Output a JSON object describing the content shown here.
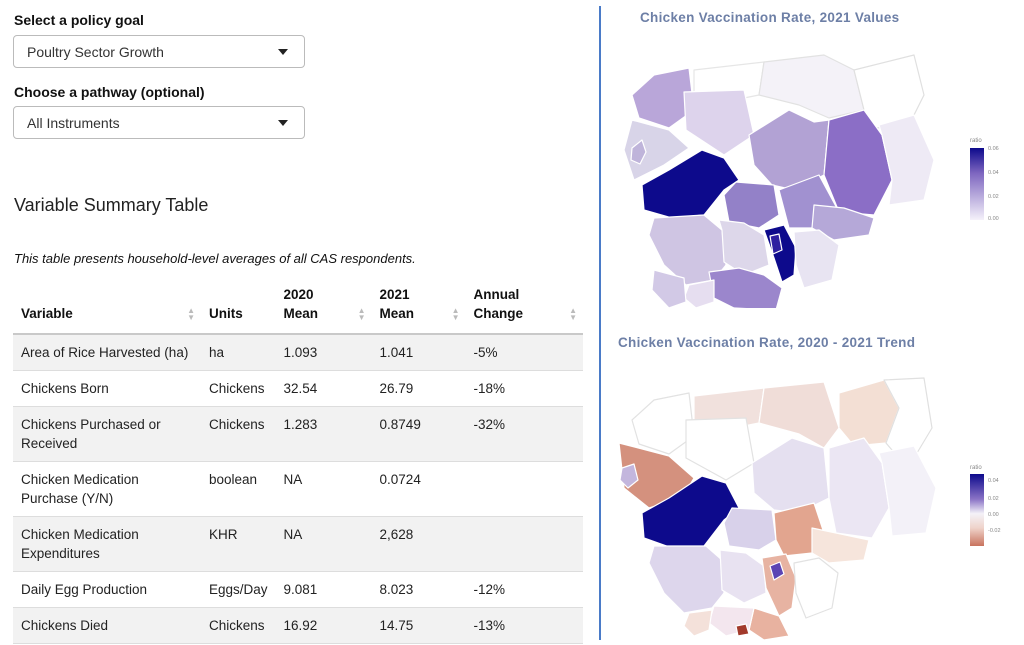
{
  "controls": {
    "goal_label": "Select a policy goal",
    "goal_value": "Poultry Sector Growth",
    "pathway_label": "Choose a pathway (optional)",
    "pathway_value": "All Instruments"
  },
  "summary": {
    "title": "Variable Summary Table",
    "caption": "This table presents household-level averages of all CAS respondents."
  },
  "table": {
    "headers": [
      "Variable",
      "Units",
      "2020 Mean",
      "2021 Mean",
      "Annual Change"
    ],
    "rows": [
      [
        "Area of Rice Harvested (ha)",
        "ha",
        "1.093",
        "1.041",
        "-5%"
      ],
      [
        "Chickens Born",
        "Chickens",
        "32.54",
        "26.79",
        "-18%"
      ],
      [
        "Chickens Purchased or Received",
        "Chickens",
        "1.283",
        "0.8749",
        "-32%"
      ],
      [
        "Chicken Medication Purchase (Y/N)",
        "boolean",
        "NA",
        "0.0724",
        ""
      ],
      [
        "Chicken Medication Expenditures",
        "KHR",
        "NA",
        "2,628",
        ""
      ],
      [
        "Daily Egg Production",
        "Eggs/Day",
        "9.081",
        "8.023",
        "-12%"
      ],
      [
        "Chickens Died",
        "Chickens",
        "16.92",
        "14.75",
        "-13%"
      ]
    ]
  },
  "maps": {
    "map1": {
      "title": "Chicken Vaccination Rate, 2021 Values",
      "legend_label": "ratio",
      "ticks": [
        "0.06",
        "0.04",
        "0.02",
        "0.00"
      ]
    },
    "map2": {
      "title": "Chicken Vaccination Rate, 2020 - 2021 Trend",
      "legend_label": "ratio",
      "ticks": [
        "0.04",
        "0.02",
        "0.00",
        "-0.02"
      ]
    }
  },
  "colors": {
    "divider": "#4a7bc8",
    "map_title": "#6d7fa6",
    "dark_purple": "#0d0a8c",
    "trend_negative": "#c8735e"
  }
}
